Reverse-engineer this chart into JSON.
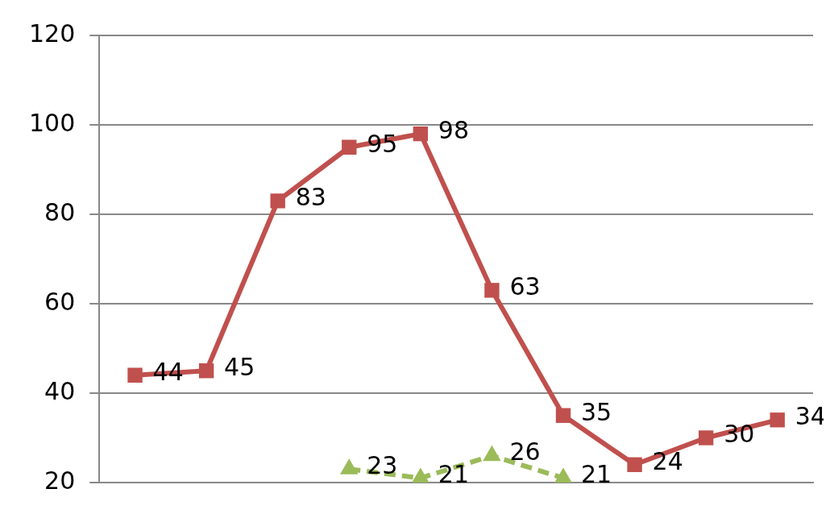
{
  "chart_data": {
    "type": "line",
    "categories": [
      null,
      null,
      null,
      null,
      null,
      null,
      null,
      null,
      null,
      null
    ],
    "series": [
      {
        "color": "#c0504d",
        "marker": "square",
        "line_style": "solid",
        "values": [
          44,
          45,
          83,
          95,
          98,
          63,
          35,
          24,
          30,
          34
        ]
      },
      {
        "color": "#9bbb59",
        "marker": "triangle",
        "line_style": "dashed",
        "values": [
          null,
          null,
          null,
          23,
          21,
          26,
          21,
          null,
          null,
          null
        ]
      }
    ],
    "ylim": [
      20,
      120
    ],
    "yticks": [
      20,
      40,
      60,
      80,
      100,
      120
    ],
    "grid": "y",
    "legend": false,
    "data_labels": true
  }
}
